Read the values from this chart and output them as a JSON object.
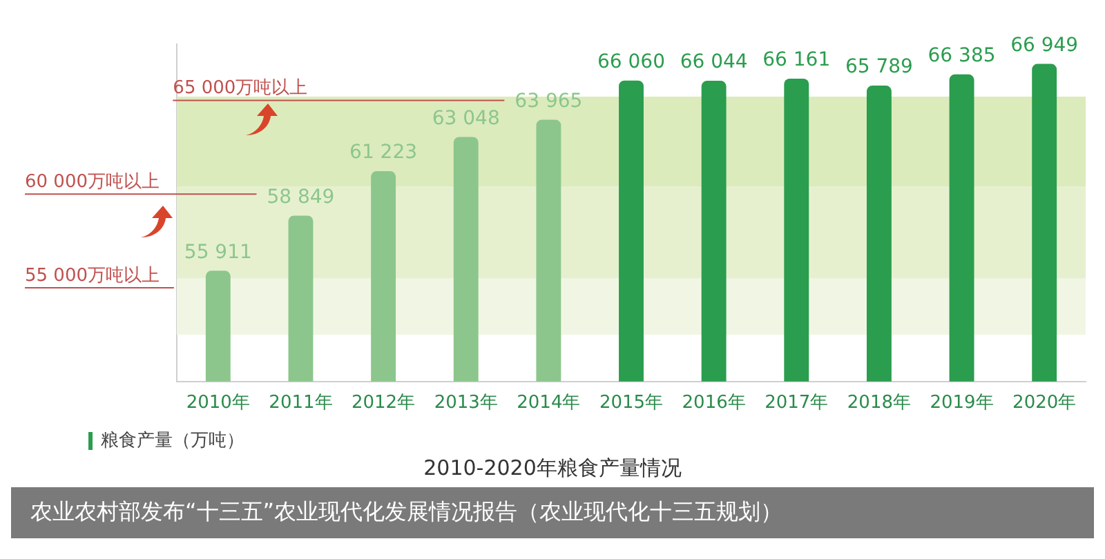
{
  "chart_data": {
    "type": "bar",
    "title": "2010-2020年粮食产量情况",
    "categories": [
      "2010年",
      "2011年",
      "2012年",
      "2013年",
      "2014年",
      "2015年",
      "2016年",
      "2017年",
      "2018年",
      "2019年",
      "2020年"
    ],
    "series": [
      {
        "name": "粮食产量（万吨）",
        "values": [
          55911,
          58849,
          61223,
          63048,
          63965,
          66060,
          66044,
          66161,
          65789,
          66385,
          66949
        ],
        "colors": [
          "#8cc68c",
          "#8cc68c",
          "#8cc68c",
          "#8cc68c",
          "#8cc68c",
          "#2a9d4e",
          "#2a9d4e",
          "#2a9d4e",
          "#2a9d4e",
          "#2a9d4e",
          "#2a9d4e"
        ]
      }
    ],
    "ylim": [
      50000,
      68000
    ],
    "tick_labels": "x",
    "grid": false,
    "legend": "bottom left",
    "data_labels": true,
    "ref_lines": [
      {
        "axis": "y",
        "value": 55000,
        "label": "55 000万吨以上",
        "color": "#c0504d"
      },
      {
        "axis": "y",
        "value": 60000,
        "label": "60 000万吨以上",
        "color": "#c0504d"
      },
      {
        "axis": "y",
        "value": 65000,
        "label": "65 000万吨以上",
        "color": "#c0504d"
      }
    ],
    "bands": [
      {
        "axis": "y",
        "from": 52500,
        "to": 55500,
        "color": "#f1f6e4"
      },
      {
        "axis": "y",
        "from": 55500,
        "to": 60400,
        "color": "#e6f0cf"
      },
      {
        "axis": "y",
        "from": 60400,
        "to": 65200,
        "color": "#dcebbc"
      }
    ],
    "annotations": [
      "农业农村部发布“十三五”农业现代化发展情况报告（农业现代化十三五规划）"
    ]
  }
}
